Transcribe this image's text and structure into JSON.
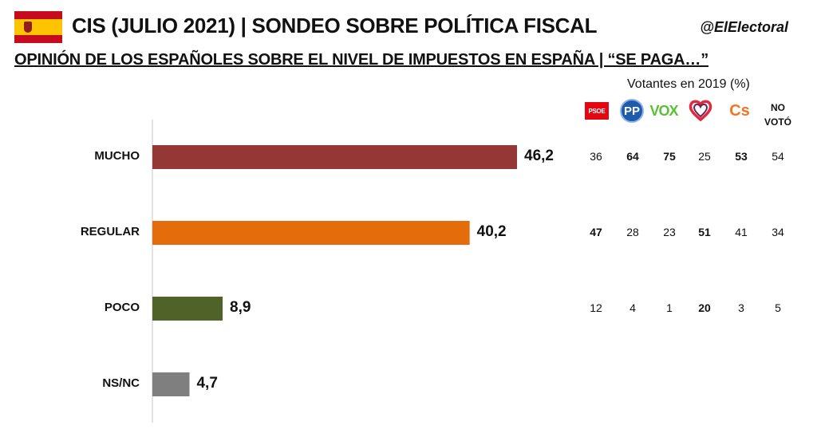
{
  "header": {
    "title": "CIS (JULIO 2021) | SONDEO SOBRE POLÍTICA FISCAL",
    "handle": "@ElElectoral",
    "subtitle": "OPINIÓN DE LOS ESPAÑOLES SOBRE EL NIVEL DE IMPUESTOS EN ESPAÑA | “SE PAGA…”"
  },
  "flag": {
    "colors": {
      "red": "#c60b1e",
      "yellow": "#ffc400"
    }
  },
  "voters": {
    "title": "Votantes en 2019 (%)",
    "parties": [
      {
        "key": "psoe",
        "label": "PSOE",
        "icon": "psoe-logo",
        "color": "#e30613"
      },
      {
        "key": "pp",
        "label": "PP",
        "icon": "pp-logo",
        "color": "#1d5bab"
      },
      {
        "key": "vox",
        "label": "VOX",
        "icon": "vox-logo",
        "color": "#5ac035"
      },
      {
        "key": "up",
        "label": "",
        "icon": "heart-logo",
        "color": "#6b1f5f"
      },
      {
        "key": "cs",
        "label": "Cs",
        "icon": "cs-logo",
        "color": "#f07621"
      },
      {
        "key": "novoto",
        "label": "NO VOTÓ",
        "icon": ""
      }
    ],
    "novoto_line1": "NO",
    "novoto_line2": "VOTÓ",
    "rows": [
      {
        "values": [
          "36",
          "64",
          "75",
          "25",
          "53",
          "54"
        ],
        "bold": [
          false,
          true,
          true,
          false,
          true,
          false
        ]
      },
      {
        "values": [
          "47",
          "28",
          "23",
          "51",
          "41",
          "34"
        ],
        "bold": [
          true,
          false,
          false,
          true,
          false,
          false
        ]
      },
      {
        "values": [
          "12",
          "4",
          "1",
          "20",
          "3",
          "5"
        ],
        "bold": [
          false,
          false,
          false,
          true,
          false,
          false
        ]
      }
    ]
  },
  "chart_data": {
    "type": "bar",
    "orientation": "horizontal",
    "categories": [
      "MUCHO",
      "REGULAR",
      "POCO",
      "NS/NC"
    ],
    "values": [
      46.2,
      40.2,
      8.9,
      4.7
    ],
    "value_labels": [
      "46,2",
      "40,2",
      "8,9",
      "4,7"
    ],
    "colors": [
      "#953735",
      "#e46c0a",
      "#4f6228",
      "#7f7f7f"
    ],
    "xlim": [
      0,
      50
    ],
    "grid": false
  }
}
